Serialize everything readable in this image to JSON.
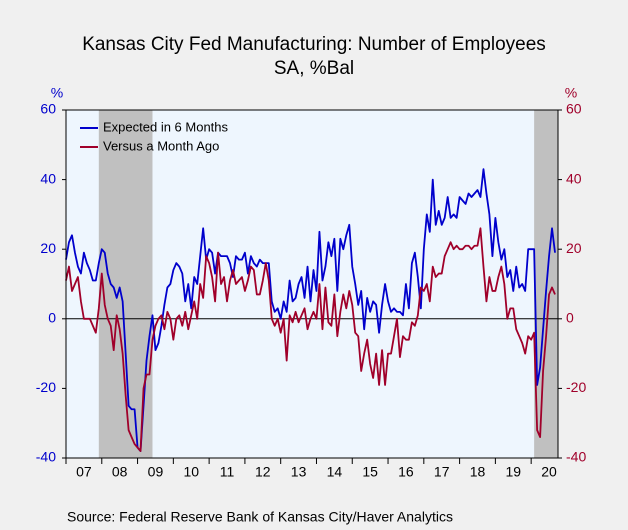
{
  "chart_data": {
    "type": "line",
    "title": "Kansas City Fed Manufacturing: Number of Employees",
    "subtitle": "SA, %Bal",
    "y_label": "%",
    "y2_label": "%",
    "source": "Source:   Federal Reserve Bank of Kansas City/Haver Analytics",
    "legend": "upper left",
    "xlim": [
      2007,
      2020.75
    ],
    "xticks": [
      2007,
      2008,
      2009,
      2010,
      2011,
      2012,
      2013,
      2014,
      2015,
      2016,
      2017,
      2018,
      2019,
      2020
    ],
    "xlabels": [
      {
        "value": 2007.5,
        "label": "07"
      },
      {
        "value": 2008.5,
        "label": "08"
      },
      {
        "value": 2009.5,
        "label": "09"
      },
      {
        "value": 2010.5,
        "label": "10"
      },
      {
        "value": 2011.5,
        "label": "11"
      },
      {
        "value": 2012.5,
        "label": "12"
      },
      {
        "value": 2013.5,
        "label": "13"
      },
      {
        "value": 2014.5,
        "label": "14"
      },
      {
        "value": 2015.5,
        "label": "15"
      },
      {
        "value": 2016.5,
        "label": "16"
      },
      {
        "value": 2017.5,
        "label": "17"
      },
      {
        "value": 2018.5,
        "label": "18"
      },
      {
        "value": 2019.5,
        "label": "19"
      },
      {
        "value": 2020.5,
        "label": "20"
      }
    ],
    "ylim": [
      -40,
      60
    ],
    "yticks": [
      -40,
      -20,
      0,
      20,
      40,
      60
    ],
    "y_color": "#0000cc",
    "y2lim": [
      -40,
      60
    ],
    "y2ticks": [
      -40,
      -20,
      0,
      20,
      40,
      60
    ],
    "y2_color": "#a0002a",
    "shaded_ranges": [
      [
        2007.917,
        2009.417
      ],
      [
        2020.083,
        2020.75
      ]
    ],
    "shade_color": "#c0c0c0",
    "x": [
      2007,
      2007.083,
      2007.167,
      2007.25,
      2007.333,
      2007.417,
      2007.5,
      2007.583,
      2007.667,
      2007.75,
      2007.833,
      2007.917,
      2008,
      2008.083,
      2008.167,
      2008.25,
      2008.333,
      2008.417,
      2008.5,
      2008.583,
      2008.667,
      2008.75,
      2008.833,
      2008.917,
      2009,
      2009.083,
      2009.167,
      2009.25,
      2009.333,
      2009.417,
      2009.5,
      2009.583,
      2009.667,
      2009.75,
      2009.833,
      2009.917,
      2010,
      2010.083,
      2010.167,
      2010.25,
      2010.333,
      2010.417,
      2010.5,
      2010.583,
      2010.667,
      2010.75,
      2010.833,
      2010.917,
      2011,
      2011.083,
      2011.167,
      2011.25,
      2011.333,
      2011.417,
      2011.5,
      2011.583,
      2011.667,
      2011.75,
      2011.833,
      2011.917,
      2012,
      2012.083,
      2012.167,
      2012.25,
      2012.333,
      2012.417,
      2012.5,
      2012.583,
      2012.667,
      2012.75,
      2012.833,
      2012.917,
      2013,
      2013.083,
      2013.167,
      2013.25,
      2013.333,
      2013.417,
      2013.5,
      2013.583,
      2013.667,
      2013.75,
      2013.833,
      2013.917,
      2014,
      2014.083,
      2014.167,
      2014.25,
      2014.333,
      2014.417,
      2014.5,
      2014.583,
      2014.667,
      2014.75,
      2014.833,
      2014.917,
      2015,
      2015.083,
      2015.167,
      2015.25,
      2015.333,
      2015.417,
      2015.5,
      2015.583,
      2015.667,
      2015.75,
      2015.833,
      2015.917,
      2016,
      2016.083,
      2016.167,
      2016.25,
      2016.333,
      2016.417,
      2016.5,
      2016.583,
      2016.667,
      2016.75,
      2016.833,
      2016.917,
      2017,
      2017.083,
      2017.167,
      2017.25,
      2017.333,
      2017.417,
      2017.5,
      2017.583,
      2017.667,
      2017.75,
      2017.833,
      2017.917,
      2018,
      2018.083,
      2018.167,
      2018.25,
      2018.333,
      2018.417,
      2018.5,
      2018.583,
      2018.667,
      2018.75,
      2018.833,
      2018.917,
      2019,
      2019.083,
      2019.167,
      2019.25,
      2019.333,
      2019.417,
      2019.5,
      2019.583,
      2019.667,
      2019.75,
      2019.833,
      2019.917,
      2020,
      2020.083,
      2020.167,
      2020.25,
      2020.333,
      2020.417,
      2020.5,
      2020.583,
      2020.667
    ],
    "series": [
      {
        "name": "Expected in 6 Months",
        "color": "#0000cc",
        "values": [
          17,
          22,
          24,
          19,
          15,
          13,
          19,
          16,
          14,
          11,
          11,
          16,
          20,
          19,
          13,
          10,
          9,
          6,
          9,
          5,
          -10,
          -25,
          -26,
          -26,
          -37,
          -38,
          -25,
          -12,
          -5,
          1,
          -9,
          -7,
          -2,
          4,
          9,
          10,
          14,
          16,
          15,
          13,
          5,
          10,
          3,
          12,
          10,
          18,
          26,
          17,
          20,
          19,
          13,
          19,
          18,
          18,
          18,
          16,
          12,
          18,
          17,
          17,
          19,
          13,
          18,
          16,
          15,
          17,
          16,
          16,
          16,
          5,
          2,
          3,
          0,
          5,
          2,
          11,
          5,
          6,
          10,
          12,
          6,
          15,
          5,
          14,
          8,
          25,
          11,
          15,
          22,
          18,
          23,
          8,
          23,
          20,
          24,
          27,
          15,
          10,
          4,
          8,
          -3,
          6,
          2,
          5,
          4,
          -4,
          4,
          10,
          5,
          2,
          3,
          2,
          2,
          1,
          10,
          3,
          16,
          19,
          12,
          3,
          20,
          30,
          25,
          40,
          27,
          31,
          27,
          29,
          35,
          29,
          30,
          29,
          35,
          34,
          33,
          36,
          35,
          36,
          37,
          35,
          43,
          36,
          30,
          18,
          29,
          22,
          17,
          20,
          12,
          14,
          8,
          15,
          9,
          10,
          8,
          20,
          20,
          20,
          -19,
          -14,
          -3,
          8,
          18,
          26,
          19
        ]
      },
      {
        "name": "Versus a Month Ago",
        "color": "#a0002a",
        "axis": "y2",
        "values": [
          11,
          15,
          8,
          10,
          12,
          5,
          0,
          0,
          0,
          -2,
          -4,
          3,
          13,
          4,
          0,
          -2,
          -9,
          1,
          -3,
          -10,
          -22,
          -32,
          -34,
          -36,
          -37,
          -38,
          -20,
          -16,
          -16,
          -6,
          -2,
          0,
          1,
          -3,
          2,
          0,
          -6,
          0,
          1,
          -2,
          2,
          -3,
          1,
          5,
          0,
          10,
          6,
          18,
          16,
          12,
          5,
          19,
          10,
          12,
          5,
          11,
          14,
          10,
          11,
          12,
          8,
          11,
          15,
          14,
          7,
          7,
          11,
          16,
          11,
          0,
          -2,
          0,
          -4,
          0,
          -12,
          1,
          -1,
          2,
          -1,
          1,
          3,
          -3,
          0,
          2,
          0,
          10,
          -3,
          9,
          -1,
          -2,
          7,
          -5,
          2,
          7,
          3,
          8,
          4,
          -4,
          -5,
          -15,
          -10,
          -6,
          -13,
          -17,
          -10,
          -19,
          -9,
          -19,
          -10,
          -10,
          -5,
          0,
          -11,
          -5,
          -6,
          -6,
          -1,
          -2,
          1,
          9,
          8,
          10,
          5,
          15,
          12,
          13,
          13,
          18,
          20,
          22,
          20,
          21,
          20,
          20,
          21,
          21,
          20,
          21,
          21,
          26,
          15,
          5,
          12,
          8,
          8,
          12,
          15,
          10,
          0,
          3,
          3,
          -3,
          -5,
          -7,
          -10,
          -5,
          -6,
          -4,
          -32,
          -34,
          -15,
          -5,
          7,
          9,
          7
        ]
      }
    ]
  }
}
